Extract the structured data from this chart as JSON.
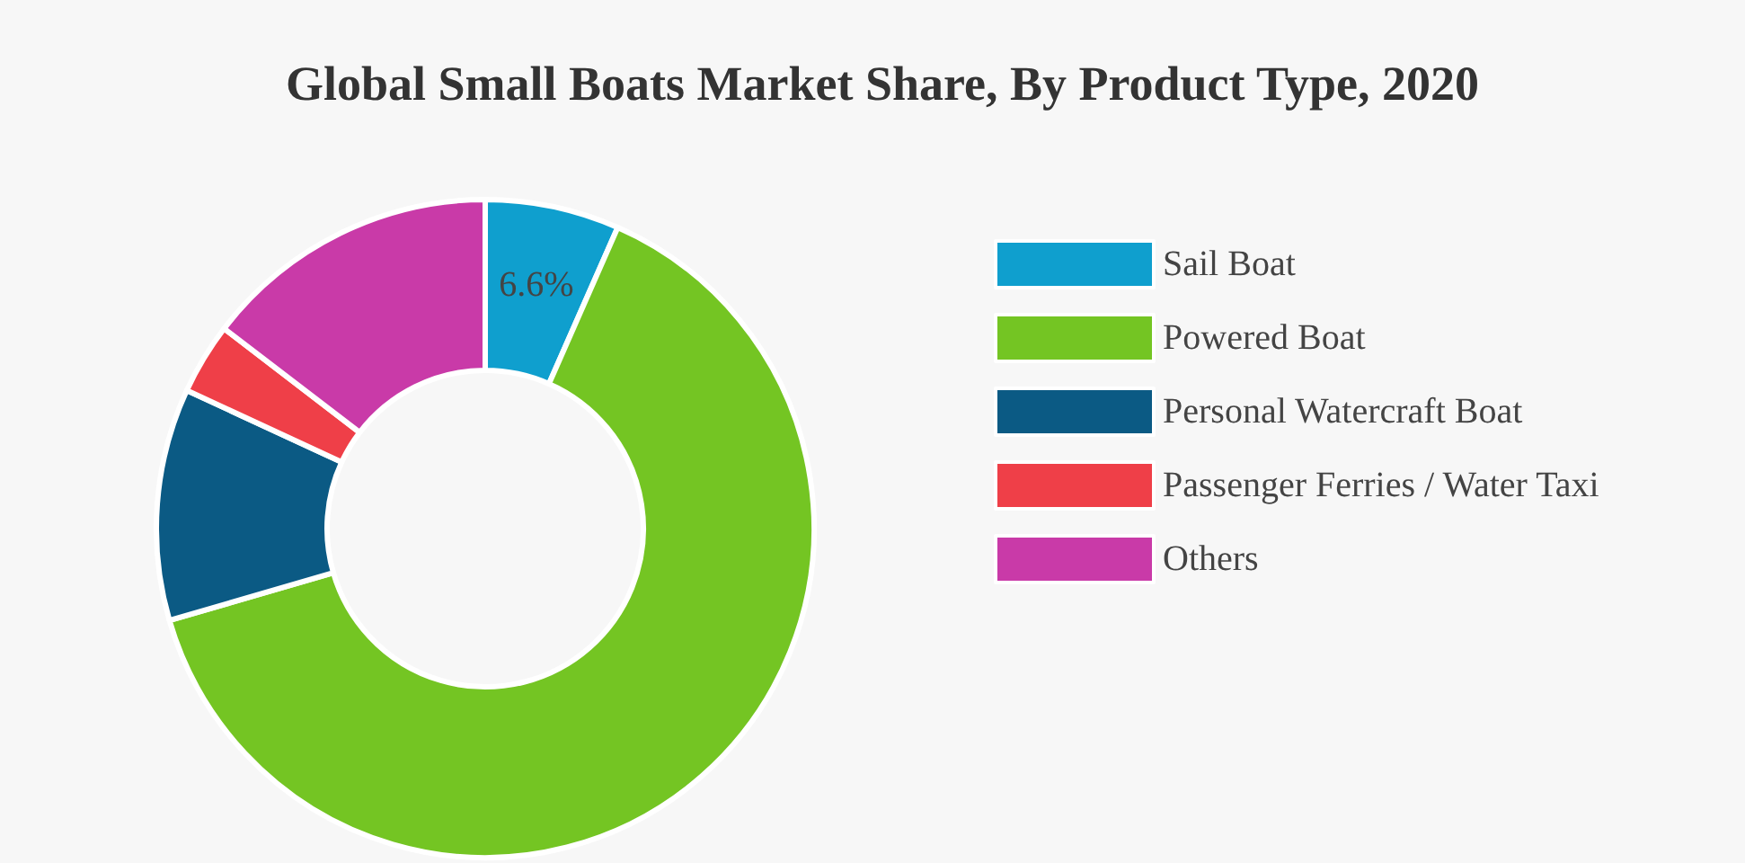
{
  "chart_data": {
    "type": "donut",
    "title": "Global Small Boats Market Share, By Product Type, 2020",
    "categories": [
      "Sail Boat",
      "Powered Boat",
      "Personal Watercraft Boat",
      "Passenger Ferries / Water Taxi",
      "Others"
    ],
    "values": [
      6.6,
      63.9,
      11.4,
      3.5,
      14.6
    ],
    "colors": [
      "#0f9fce",
      "#74c523",
      "#0b5a84",
      "#ef3f48",
      "#c93aa8"
    ],
    "value_labels": [
      "6.6%",
      null,
      null,
      null,
      null
    ],
    "legend": "right"
  }
}
